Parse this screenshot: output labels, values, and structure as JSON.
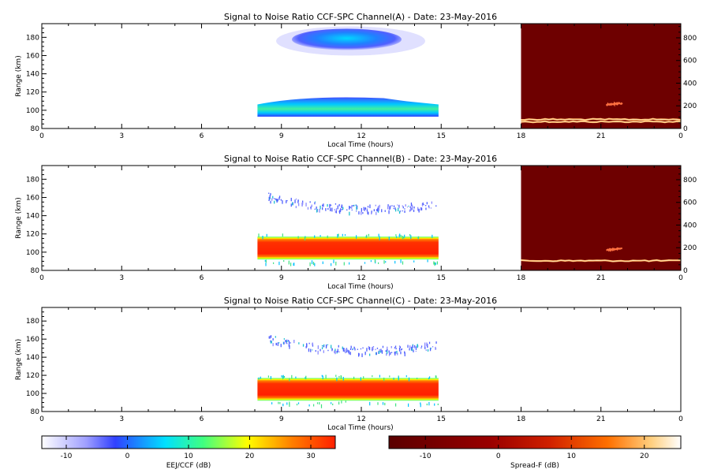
{
  "chart_data": [
    {
      "type": "heatmap",
      "title": "Signal to Noise Ratio CCF-SPC Channel(A) - Date: 23-May-2016",
      "xlabel": "Local Time (hours)",
      "ylabel": "Range (km)",
      "xlim": [
        0,
        24
      ],
      "ylim": [
        80,
        195
      ],
      "y2lim": [
        0,
        925
      ],
      "x_ticks": [
        "0",
        "3",
        "6",
        "9",
        "12",
        "15",
        "18",
        "21",
        "0"
      ],
      "y_ticks": [
        "80",
        "100",
        "120",
        "140",
        "160",
        "180"
      ],
      "y2_ticks": [
        "0",
        "200",
        "400",
        "600",
        "800"
      ],
      "regions": [
        {
          "kind": "eej",
          "x": [
            8.1,
            14.9
          ],
          "y": [
            93,
            115
          ],
          "level": "low-mid"
        },
        {
          "kind": "eej",
          "x": [
            8.8,
            14.4
          ],
          "y": [
            160,
            192
          ],
          "level": "low"
        }
      ],
      "spread_f": {
        "x": [
          18,
          24
        ],
        "traces": [
          {
            "y2": 60
          },
          {
            "y2": 80
          },
          {
            "y2": 210,
            "x": [
              21.2,
              21.8
            ]
          }
        ]
      }
    },
    {
      "type": "heatmap",
      "title": "Signal to Noise Ratio CCF-SPC Channel(B) - Date: 23-May-2016",
      "xlabel": "Local Time (hours)",
      "ylabel": "Range (km)",
      "xlim": [
        0,
        24
      ],
      "ylim": [
        80,
        195
      ],
      "y2lim": [
        0,
        925
      ],
      "x_ticks": [
        "0",
        "3",
        "6",
        "9",
        "12",
        "15",
        "18",
        "21",
        "0"
      ],
      "y_ticks": [
        "80",
        "100",
        "120",
        "140",
        "160",
        "180"
      ],
      "y2_ticks": [
        "0",
        "200",
        "400",
        "600",
        "800"
      ],
      "regions": [
        {
          "kind": "eej",
          "x": [
            8.1,
            14.9
          ],
          "y": [
            92,
            117
          ],
          "level": "high"
        },
        {
          "kind": "eej",
          "x": [
            8.5,
            14.8
          ],
          "y": [
            140,
            165
          ],
          "level": "sparse"
        }
      ],
      "spread_f": {
        "x": [
          18,
          24
        ],
        "traces": [
          {
            "y2": 85
          },
          {
            "y2": 180,
            "x": [
              21.2,
              21.8
            ]
          }
        ]
      }
    },
    {
      "type": "heatmap",
      "title": "Signal to Noise Ratio CCF-SPC Channel(C) - Date: 23-May-2016",
      "xlabel": "Local Time (hours)",
      "ylabel": "Range (km)",
      "xlim": [
        0,
        24
      ],
      "ylim": [
        80,
        195
      ],
      "x_ticks": [
        "0",
        "3",
        "6",
        "9",
        "12",
        "15",
        "18",
        "21",
        "0"
      ],
      "y_ticks": [
        "80",
        "100",
        "120",
        "140",
        "160",
        "180"
      ],
      "regions": [
        {
          "kind": "eej",
          "x": [
            8.1,
            14.9
          ],
          "y": [
            92,
            117
          ],
          "level": "high"
        },
        {
          "kind": "eej",
          "x": [
            8.5,
            14.8
          ],
          "y": [
            140,
            165
          ],
          "level": "sparse"
        }
      ]
    }
  ],
  "colorbars": [
    {
      "label": "EEJ/CCF (dB)",
      "range": [
        -14,
        34
      ],
      "ticks": [
        "-10",
        "0",
        "10",
        "20",
        "30"
      ],
      "colors": [
        "#ffffff",
        "#4040ff",
        "#00e0ff",
        "#40ff80",
        "#ffff00",
        "#ff8000",
        "#ff2000"
      ]
    },
    {
      "label": "Spread-F (dB)",
      "range": [
        -15,
        25
      ],
      "ticks": [
        "-10",
        "0",
        "10",
        "20"
      ],
      "colors": [
        "#5a0000",
        "#9a0000",
        "#d02000",
        "#ff7000",
        "#ffd080",
        "#ffffff"
      ]
    }
  ]
}
